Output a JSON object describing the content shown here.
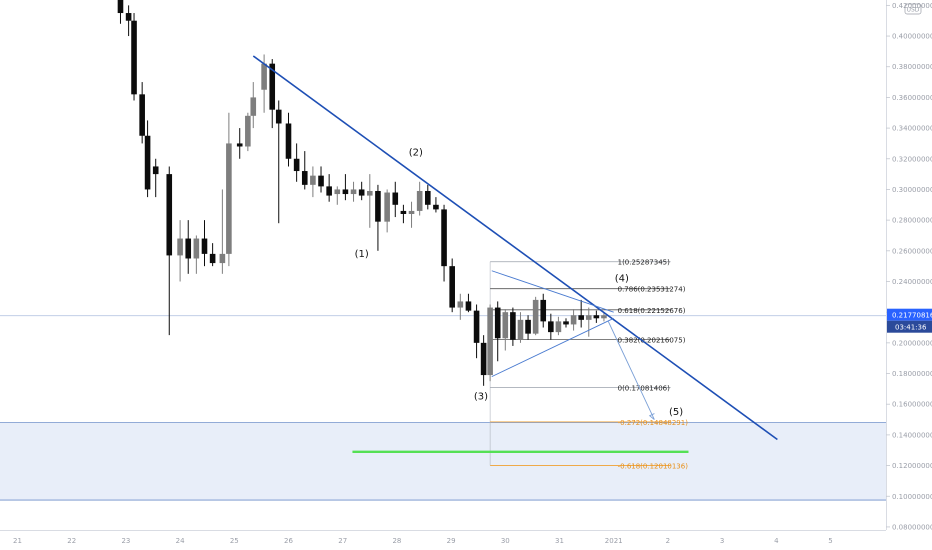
{
  "chart_data": {
    "type": "candlestick",
    "x": [
      "21",
      "22",
      "23",
      "24",
      "25",
      "26",
      "27",
      "28",
      "29",
      "30",
      "31",
      "2021",
      "2",
      "3",
      "4",
      "5"
    ],
    "y_ticks": [
      0.08,
      0.1,
      0.12,
      0.14,
      0.16,
      0.18,
      0.2,
      0.22,
      0.24,
      0.26,
      0.28,
      0.3,
      0.32,
      0.34,
      0.36,
      0.38,
      0.4,
      0.42
    ],
    "y_tick_labels": [
      "0.08000000",
      "0.10000000",
      "0.12000000",
      "0.14000000",
      "0.16000000",
      "0.18000000",
      "0.20000000",
      "0.22000000",
      "0.24000000",
      "0.26000000",
      "0.28000000",
      "0.30000000",
      "0.32000000",
      "0.34000000",
      "0.36000000",
      "0.38000000",
      "0.40000000",
      "0.42000000"
    ],
    "ylim": [
      0.078,
      0.4235
    ],
    "xlim": [
      21.0,
      37.4
    ],
    "currency": "USD",
    "current_price": {
      "value": 0.2177,
      "label": "0.21770816",
      "countdown": "03:41:36"
    },
    "candles": [
      {
        "x": 22.9,
        "o": 0.43,
        "h": 0.438,
        "l": 0.408,
        "c": 0.415
      },
      {
        "x": 23.05,
        "o": 0.415,
        "h": 0.42,
        "l": 0.4,
        "c": 0.41
      },
      {
        "x": 23.15,
        "o": 0.41,
        "h": 0.415,
        "l": 0.358,
        "c": 0.362
      },
      {
        "x": 23.3,
        "o": 0.362,
        "h": 0.37,
        "l": 0.33,
        "c": 0.335
      },
      {
        "x": 23.4,
        "o": 0.335,
        "h": 0.345,
        "l": 0.295,
        "c": 0.3
      },
      {
        "x": 23.55,
        "o": 0.315,
        "h": 0.32,
        "l": 0.295,
        "c": 0.31
      },
      {
        "x": 23.8,
        "o": 0.31,
        "h": 0.315,
        "l": 0.205,
        "c": 0.257
      },
      {
        "x": 24.0,
        "o": 0.257,
        "h": 0.28,
        "l": 0.24,
        "c": 0.268
      },
      {
        "x": 24.15,
        "o": 0.268,
        "h": 0.28,
        "l": 0.245,
        "c": 0.255
      },
      {
        "x": 24.3,
        "o": 0.255,
        "h": 0.27,
        "l": 0.245,
        "c": 0.268
      },
      {
        "x": 24.45,
        "o": 0.268,
        "h": 0.28,
        "l": 0.25,
        "c": 0.258
      },
      {
        "x": 24.6,
        "o": 0.258,
        "h": 0.265,
        "l": 0.25,
        "c": 0.252
      },
      {
        "x": 24.78,
        "o": 0.252,
        "h": 0.3,
        "l": 0.245,
        "c": 0.258
      },
      {
        "x": 24.9,
        "o": 0.258,
        "h": 0.35,
        "l": 0.25,
        "c": 0.33
      },
      {
        "x": 25.1,
        "o": 0.33,
        "h": 0.34,
        "l": 0.32,
        "c": 0.328
      },
      {
        "x": 25.25,
        "o": 0.328,
        "h": 0.35,
        "l": 0.325,
        "c": 0.348
      },
      {
        "x": 25.35,
        "o": 0.348,
        "h": 0.37,
        "l": 0.34,
        "c": 0.36
      },
      {
        "x": 25.55,
        "o": 0.365,
        "h": 0.388,
        "l": 0.35,
        "c": 0.382
      },
      {
        "x": 25.7,
        "o": 0.382,
        "h": 0.385,
        "l": 0.34,
        "c": 0.352
      },
      {
        "x": 25.82,
        "o": 0.352,
        "h": 0.358,
        "l": 0.278,
        "c": 0.343
      },
      {
        "x": 26.0,
        "o": 0.343,
        "h": 0.35,
        "l": 0.315,
        "c": 0.32
      },
      {
        "x": 26.15,
        "o": 0.32,
        "h": 0.33,
        "l": 0.305,
        "c": 0.312
      },
      {
        "x": 26.3,
        "o": 0.312,
        "h": 0.325,
        "l": 0.3,
        "c": 0.303
      },
      {
        "x": 26.45,
        "o": 0.303,
        "h": 0.315,
        "l": 0.295,
        "c": 0.309
      },
      {
        "x": 26.6,
        "o": 0.309,
        "h": 0.315,
        "l": 0.298,
        "c": 0.302
      },
      {
        "x": 26.75,
        "o": 0.302,
        "h": 0.31,
        "l": 0.292,
        "c": 0.296
      },
      {
        "x": 26.9,
        "o": 0.297,
        "h": 0.302,
        "l": 0.29,
        "c": 0.3
      },
      {
        "x": 27.05,
        "o": 0.3,
        "h": 0.31,
        "l": 0.293,
        "c": 0.297
      },
      {
        "x": 27.2,
        "o": 0.297,
        "h": 0.305,
        "l": 0.292,
        "c": 0.3
      },
      {
        "x": 27.35,
        "o": 0.3,
        "h": 0.305,
        "l": 0.293,
        "c": 0.296
      },
      {
        "x": 27.5,
        "o": 0.296,
        "h": 0.31,
        "l": 0.275,
        "c": 0.299
      },
      {
        "x": 27.65,
        "o": 0.299,
        "h": 0.303,
        "l": 0.26,
        "c": 0.279
      },
      {
        "x": 27.82,
        "o": 0.279,
        "h": 0.3,
        "l": 0.272,
        "c": 0.298
      },
      {
        "x": 27.97,
        "o": 0.298,
        "h": 0.305,
        "l": 0.282,
        "c": 0.29
      },
      {
        "x": 28.12,
        "o": 0.286,
        "h": 0.29,
        "l": 0.278,
        "c": 0.284
      },
      {
        "x": 28.27,
        "o": 0.284,
        "h": 0.292,
        "l": 0.275,
        "c": 0.286
      },
      {
        "x": 28.42,
        "o": 0.286,
        "h": 0.305,
        "l": 0.283,
        "c": 0.299
      },
      {
        "x": 28.57,
        "o": 0.299,
        "h": 0.303,
        "l": 0.287,
        "c": 0.29
      },
      {
        "x": 28.72,
        "o": 0.29,
        "h": 0.295,
        "l": 0.285,
        "c": 0.287
      },
      {
        "x": 28.87,
        "o": 0.287,
        "h": 0.29,
        "l": 0.24,
        "c": 0.25
      },
      {
        "x": 29.02,
        "o": 0.25,
        "h": 0.255,
        "l": 0.22,
        "c": 0.223
      },
      {
        "x": 29.17,
        "o": 0.223,
        "h": 0.232,
        "l": 0.215,
        "c": 0.227
      },
      {
        "x": 29.32,
        "o": 0.227,
        "h": 0.232,
        "l": 0.22,
        "c": 0.221
      },
      {
        "x": 29.47,
        "o": 0.221,
        "h": 0.225,
        "l": 0.19,
        "c": 0.2
      },
      {
        "x": 29.6,
        "o": 0.2,
        "h": 0.205,
        "l": 0.172,
        "c": 0.179
      },
      {
        "x": 29.72,
        "o": 0.179,
        "h": 0.225,
        "l": 0.175,
        "c": 0.223
      },
      {
        "x": 29.86,
        "o": 0.223,
        "h": 0.227,
        "l": 0.188,
        "c": 0.203
      },
      {
        "x": 30.0,
        "o": 0.203,
        "h": 0.222,
        "l": 0.195,
        "c": 0.22
      },
      {
        "x": 30.14,
        "o": 0.22,
        "h": 0.223,
        "l": 0.198,
        "c": 0.202
      },
      {
        "x": 30.28,
        "o": 0.202,
        "h": 0.22,
        "l": 0.2,
        "c": 0.215
      },
      {
        "x": 30.42,
        "o": 0.215,
        "h": 0.218,
        "l": 0.202,
        "c": 0.206
      },
      {
        "x": 30.56,
        "o": 0.206,
        "h": 0.23,
        "l": 0.205,
        "c": 0.228
      },
      {
        "x": 30.7,
        "o": 0.228,
        "h": 0.232,
        "l": 0.21,
        "c": 0.214
      },
      {
        "x": 30.84,
        "o": 0.214,
        "h": 0.219,
        "l": 0.202,
        "c": 0.207
      },
      {
        "x": 30.98,
        "o": 0.207,
        "h": 0.217,
        "l": 0.205,
        "c": 0.214
      },
      {
        "x": 31.12,
        "o": 0.214,
        "h": 0.216,
        "l": 0.21,
        "c": 0.212
      },
      {
        "x": 31.26,
        "o": 0.212,
        "h": 0.222,
        "l": 0.208,
        "c": 0.218
      },
      {
        "x": 31.4,
        "o": 0.218,
        "h": 0.228,
        "l": 0.21,
        "c": 0.215
      },
      {
        "x": 31.54,
        "o": 0.215,
        "h": 0.223,
        "l": 0.204,
        "c": 0.218
      },
      {
        "x": 31.68,
        "o": 0.218,
        "h": 0.221,
        "l": 0.213,
        "c": 0.216
      },
      {
        "x": 31.82,
        "o": 0.216,
        "h": 0.22,
        "l": 0.214,
        "c": 0.218
      }
    ],
    "trendlines": [
      {
        "name": "main-downtrend",
        "color": "#1e4fb5",
        "width": 1.6,
        "points": [
          [
            25.35,
            0.387
          ],
          [
            35.02,
            0.137
          ]
        ]
      },
      {
        "name": "triangle-upper",
        "color": "#4a7bd0",
        "width": 0.9,
        "points": [
          [
            29.75,
            0.247
          ],
          [
            32.0,
            0.22
          ]
        ]
      },
      {
        "name": "triangle-lower",
        "color": "#4a7bd0",
        "width": 0.9,
        "points": [
          [
            29.75,
            0.178
          ],
          [
            32.0,
            0.216
          ]
        ]
      },
      {
        "name": "projection-arrow",
        "color": "#7a9fd6",
        "width": 0.9,
        "points": [
          [
            31.9,
            0.214
          ],
          [
            32.75,
            0.15
          ]
        ]
      }
    ],
    "fib_levels": [
      {
        "ratio": "1",
        "value": 0.25287345,
        "label": "1(0.25287345)",
        "color": "#9aa0ab"
      },
      {
        "ratio": "0.786",
        "value": 0.23531274,
        "label": "0.786(0.23531274)",
        "color": "#545454"
      },
      {
        "ratio": "0.618",
        "value": 0.22152676,
        "label": "0.618(0.22152676)",
        "color": "#545454"
      },
      {
        "ratio": "0.382",
        "value": 0.20216075,
        "label": "0.382(0.20216075)",
        "color": "#545454"
      },
      {
        "ratio": "0",
        "value": 0.17081406,
        "label": "0(0.17081406)",
        "color": "#9aa0ab"
      },
      {
        "ratio": "-0.272",
        "value": 0.14848291,
        "label": "-0.272(0.14848291)",
        "color": "#f0a030"
      },
      {
        "ratio": "-0.618",
        "value": 0.12010136,
        "label": "-0.618(0.12010136)",
        "color": "#f0a030"
      }
    ],
    "fib_range": {
      "x_start": 29.72,
      "x_end": 33.05
    },
    "support_zone": {
      "y_top": 0.148,
      "y_bottom": 0.0975,
      "color": "#e8eef9",
      "border": "#6f8fca"
    },
    "green_target": {
      "value": 0.129,
      "x_start": 27.18,
      "x_end": 33.38,
      "color": "#55e055"
    },
    "wave_labels": [
      {
        "label": "(1)",
        "x": 27.35,
        "y": 0.256
      },
      {
        "label": "(2)",
        "x": 28.35,
        "y": 0.322
      },
      {
        "label": "(3)",
        "x": 29.55,
        "y": 0.163
      },
      {
        "label": "(4)",
        "x": 32.15,
        "y": 0.24
      },
      {
        "label": "(5)",
        "x": 33.15,
        "y": 0.153
      }
    ],
    "colors": {
      "up_candle": "#7e7e7e",
      "down_candle": "#0c0c0c",
      "price_line": "#b9c7e4",
      "price_box": "#2962ff",
      "countdown_box": "#2b4a9a",
      "axis_text": "#9a9ea8"
    }
  }
}
